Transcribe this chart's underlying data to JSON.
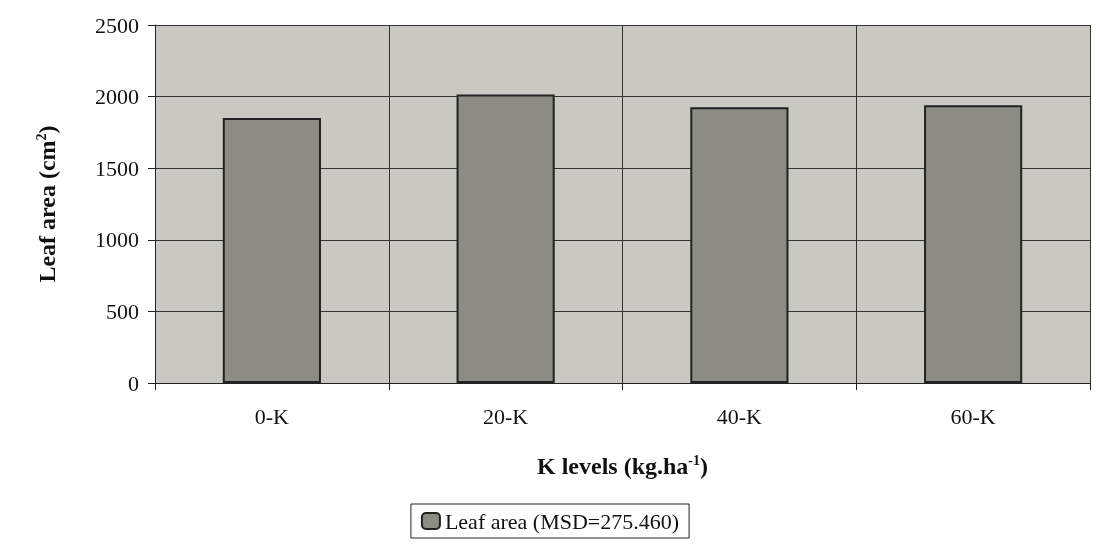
{
  "chart_data": {
    "type": "bar",
    "xlabel": "K levels (kg.ha$^{-1}$)",
    "ylabel": "Leaf area (cm$^{2}$)",
    "categories": [
      "0-K",
      "20-K",
      "40-K",
      "60-K"
    ],
    "series": [
      {
        "name": "Leaf area (MSD=275.460)",
        "color": "#8c8c84",
        "values": [
          1850,
          2015,
          1925,
          1940
        ]
      }
    ],
    "ylim": [
      0,
      2500
    ],
    "yticks": [
      0,
      500,
      1000,
      1500,
      2000,
      2500
    ],
    "grid": true,
    "legend": "bottom"
  }
}
